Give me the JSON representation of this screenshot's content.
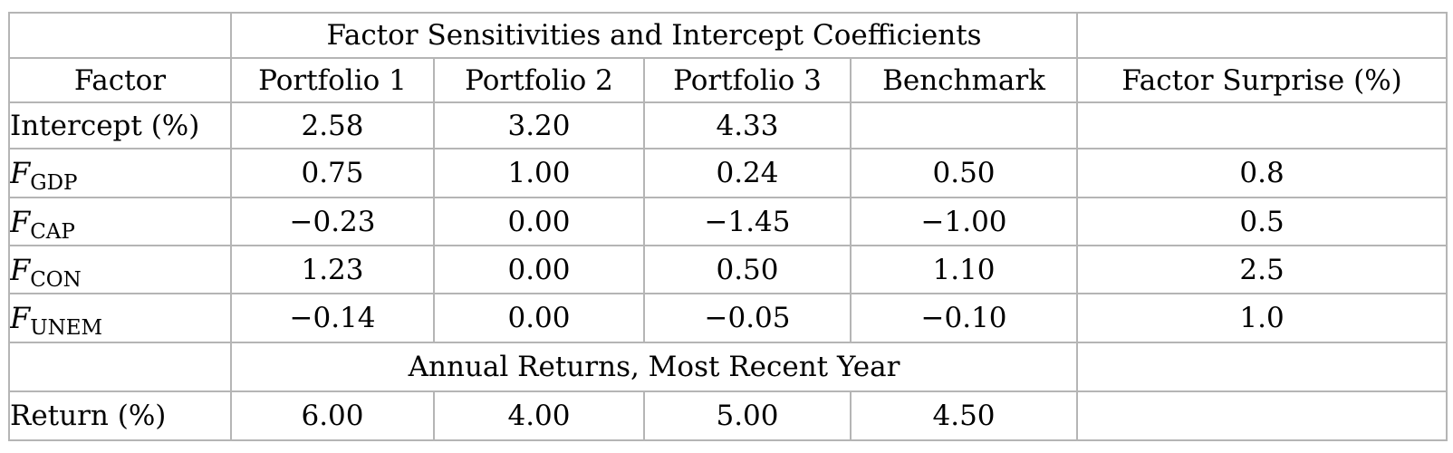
{
  "table": {
    "span_header_top": "Factor Sensitivities and Intercept Coefficients",
    "span_header_bottom": "Annual Returns, Most Recent Year",
    "col_headers": [
      "Factor",
      "Portfolio 1",
      "Portfolio 2",
      "Portfolio 3",
      "Benchmark",
      "Factor Surprise (%)"
    ],
    "rows": [
      {
        "label": "Intercept (%)",
        "values": [
          "2.58",
          "3.20",
          "4.33",
          "",
          ""
        ]
      },
      {
        "label_prefix": "F",
        "label_sub": "GDP",
        "values": [
          "0.75",
          "1.00",
          "0.24",
          "0.50",
          "0.8"
        ]
      },
      {
        "label_prefix": "F",
        "label_sub": "CAP",
        "values": [
          "−0.23",
          "0.00",
          "−1.45",
          "−1.00",
          "0.5"
        ]
      },
      {
        "label_prefix": "F",
        "label_sub": "CON",
        "values": [
          "1.23",
          "0.00",
          "0.50",
          "1.10",
          "2.5"
        ]
      },
      {
        "label_prefix": "F",
        "label_sub": "UNEM",
        "values": [
          "−0.14",
          "0.00",
          "−0.05",
          "−0.10",
          "1.0"
        ]
      }
    ],
    "return_row": {
      "label": "Return (%)",
      "values": [
        "6.00",
        "4.00",
        "5.00",
        "4.50",
        ""
      ]
    }
  },
  "colors": {
    "grid_line": "#b5b5b5",
    "heavy_line": "#000000",
    "text": "#000000",
    "background": "#ffffff"
  }
}
